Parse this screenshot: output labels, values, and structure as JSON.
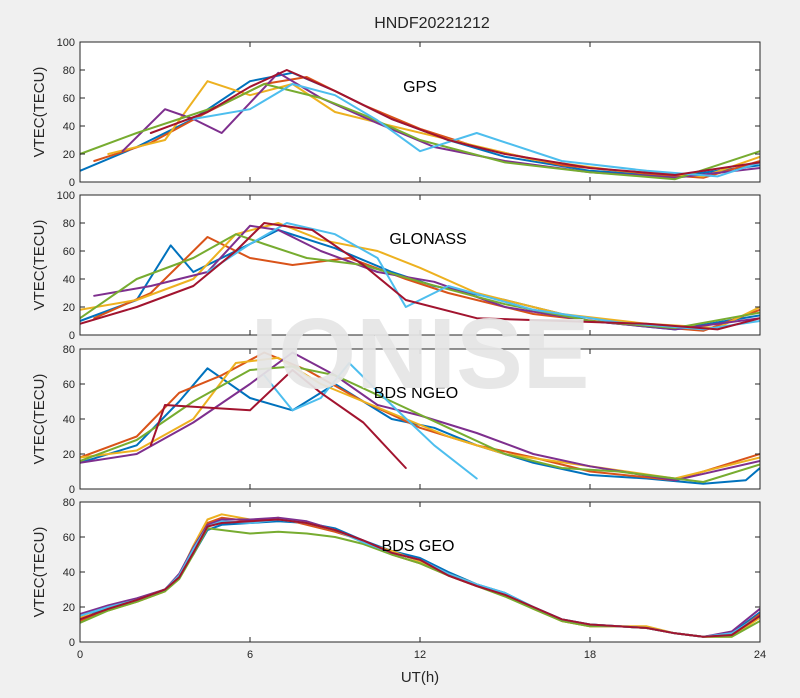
{
  "figure": {
    "title": "HNDF20221212",
    "xlabel": "UT(h)",
    "watermark": "IONISE",
    "series_colors": [
      "#0072bd",
      "#d95319",
      "#edb120",
      "#7e2f8e",
      "#77ac30",
      "#4dbeee",
      "#a2142f"
    ]
  },
  "chart_data": [
    {
      "type": "line",
      "annotation": "GPS",
      "ylabel": "VTEC(TECU)",
      "xlim": [
        0,
        24
      ],
      "ylim": [
        0,
        100
      ],
      "xticks": [
        0,
        6,
        12,
        18,
        24
      ],
      "yticks": [
        0,
        20,
        40,
        60,
        80,
        100
      ],
      "series": [
        {
          "x": [
            0,
            2,
            4,
            6,
            7.5,
            9,
            11,
            13,
            15,
            18,
            21,
            24
          ],
          "values": [
            8,
            25,
            45,
            72,
            78,
            65,
            45,
            30,
            18,
            8,
            4,
            12
          ]
        },
        {
          "x": [
            0.5,
            2.5,
            4.5,
            6.5,
            8,
            10,
            12,
            14,
            17,
            20,
            22,
            24
          ],
          "values": [
            15,
            28,
            50,
            70,
            75,
            55,
            38,
            25,
            12,
            6,
            3,
            15
          ]
        },
        {
          "x": [
            1,
            3,
            4.5,
            6,
            7.5,
            9,
            11,
            13.5,
            16,
            19,
            22,
            24
          ],
          "values": [
            20,
            30,
            72,
            62,
            70,
            50,
            40,
            28,
            16,
            8,
            4,
            18
          ]
        },
        {
          "x": [
            1.5,
            3,
            4,
            5,
            7,
            8.5,
            10.5,
            12.5,
            15,
            18,
            21,
            24
          ],
          "values": [
            22,
            52,
            45,
            35,
            78,
            60,
            42,
            25,
            15,
            7,
            3,
            10
          ]
        },
        {
          "x": [
            0,
            2,
            3.5,
            5,
            6.5,
            8.5,
            10,
            12,
            15,
            18,
            21,
            24
          ],
          "values": [
            20,
            35,
            45,
            55,
            70,
            60,
            48,
            30,
            14,
            7,
            2,
            22
          ]
        },
        {
          "x": [
            4,
            6,
            7.5,
            9,
            10.5,
            12,
            14,
            17,
            20,
            22.5,
            24
          ],
          "values": [
            45,
            52,
            70,
            62,
            44,
            22,
            35,
            15,
            8,
            4,
            14
          ]
        },
        {
          "x": [
            2.5,
            4.5,
            6,
            7.3,
            9,
            11,
            13,
            15,
            18,
            21,
            24
          ],
          "values": [
            35,
            50,
            68,
            80,
            65,
            45,
            30,
            20,
            10,
            5,
            14
          ]
        }
      ]
    },
    {
      "type": "line",
      "annotation": "GLONASS",
      "ylabel": "VTEC(TECU)",
      "xlim": [
        0,
        24
      ],
      "ylim": [
        0,
        100
      ],
      "xticks": [
        0,
        6,
        12,
        18,
        24
      ],
      "yticks": [
        0,
        20,
        40,
        60,
        80,
        100
      ],
      "series": [
        {
          "x": [
            0,
            2,
            3.2,
            4,
            5.5,
            7,
            9,
            11,
            12.5,
            15,
            18,
            21,
            24
          ],
          "values": [
            10,
            25,
            64,
            45,
            60,
            75,
            62,
            45,
            35,
            25,
            10,
            4,
            14
          ]
        },
        {
          "x": [
            0.5,
            2.5,
            4.5,
            6,
            7.5,
            9.5,
            11.5,
            13,
            16,
            19,
            22,
            24
          ],
          "values": [
            12,
            30,
            70,
            55,
            50,
            55,
            40,
            30,
            15,
            8,
            3,
            18
          ]
        },
        {
          "x": [
            0,
            2,
            4,
            5.5,
            7,
            8.5,
            10.5,
            12,
            14,
            17,
            20,
            22.5,
            24
          ],
          "values": [
            18,
            25,
            40,
            72,
            80,
            68,
            60,
            48,
            30,
            15,
            8,
            5,
            20
          ]
        },
        {
          "x": [
            0.5,
            2.5,
            4.5,
            6,
            7,
            8.5,
            10.5,
            12.5,
            15,
            18,
            21,
            24
          ],
          "values": [
            28,
            35,
            45,
            78,
            75,
            60,
            45,
            38,
            20,
            10,
            4,
            12
          ]
        },
        {
          "x": [
            0,
            2,
            4,
            5.5,
            6.5,
            8,
            10,
            12,
            15,
            18,
            21,
            24
          ],
          "values": [
            12,
            40,
            55,
            72,
            65,
            55,
            50,
            38,
            22,
            10,
            5,
            16
          ]
        },
        {
          "x": [
            4.5,
            6,
            7.3,
            9,
            10.5,
            11.5,
            13,
            16,
            19,
            22,
            24
          ],
          "values": [
            45,
            65,
            80,
            72,
            55,
            20,
            35,
            18,
            9,
            4,
            10
          ]
        },
        {
          "x": [
            0,
            2,
            4,
            5.5,
            6.5,
            8.2,
            10,
            11.5,
            14,
            17,
            20,
            22.5,
            24
          ],
          "values": [
            8,
            20,
            35,
            60,
            80,
            75,
            50,
            25,
            12,
            10,
            8,
            4,
            12
          ]
        }
      ]
    },
    {
      "type": "line",
      "annotation": "BDS NGEO",
      "ylabel": "VTEC(TECU)",
      "xlim": [
        0,
        24
      ],
      "ylim": [
        0,
        80
      ],
      "xticks": [
        0,
        6,
        12,
        18,
        24
      ],
      "yticks": [
        0,
        20,
        40,
        60,
        80
      ],
      "series": [
        {
          "x": [
            0,
            2,
            3.5,
            4.5,
            6,
            7.5,
            9,
            11,
            12.5,
            14,
            16,
            18,
            20,
            22,
            23.5,
            24
          ],
          "values": [
            15,
            25,
            50,
            69,
            52,
            45,
            60,
            40,
            35,
            25,
            15,
            8,
            6,
            3,
            5,
            12
          ]
        },
        {
          "x": [
            0,
            2,
            3.5,
            5,
            6.5,
            8,
            10,
            12,
            14,
            16,
            18,
            21,
            24
          ],
          "values": [
            18,
            30,
            55,
            65,
            78,
            68,
            50,
            35,
            25,
            18,
            10,
            5,
            20
          ]
        },
        {
          "x": [
            0,
            2,
            4,
            5.5,
            7,
            8.5,
            10,
            11.5,
            13,
            15,
            18,
            21,
            24
          ],
          "values": [
            18,
            22,
            40,
            72,
            75,
            60,
            50,
            40,
            30,
            20,
            13,
            6,
            18
          ]
        },
        {
          "x": [
            0,
            2,
            4,
            6,
            7.5,
            9,
            10.5,
            12,
            14,
            16,
            18,
            21,
            24
          ],
          "values": [
            15,
            20,
            38,
            60,
            78,
            65,
            48,
            42,
            32,
            20,
            13,
            5,
            16
          ]
        },
        {
          "x": [
            0,
            2,
            4,
            6,
            7.5,
            9,
            11,
            13,
            15,
            17,
            19,
            22,
            24
          ],
          "values": [
            16,
            28,
            50,
            68,
            70,
            65,
            50,
            35,
            20,
            12,
            10,
            4,
            14
          ]
        },
        {
          "x": [
            6.5,
            7.5,
            8.5,
            9.5,
            11,
            12.5,
            14
          ],
          "values": [
            65,
            45,
            52,
            72,
            48,
            25,
            6
          ]
        },
        {
          "x": [
            2.5,
            3,
            6,
            7.5,
            8.5,
            10,
            11.5
          ],
          "values": [
            25,
            48,
            45,
            68,
            55,
            38,
            12
          ]
        }
      ]
    },
    {
      "type": "line",
      "annotation": "BDS GEO",
      "ylabel": "VTEC(TECU)",
      "xlim": [
        0,
        24
      ],
      "ylim": [
        0,
        80
      ],
      "xticks": [
        0,
        6,
        12,
        18,
        24
      ],
      "yticks": [
        0,
        20,
        40,
        60,
        80
      ],
      "series": [
        {
          "x": [
            0,
            1,
            2,
            3,
            3.5,
            4,
            4.5,
            5,
            6,
            7,
            8,
            9,
            10,
            11,
            12,
            13,
            14,
            15,
            16,
            17,
            18,
            19,
            20,
            21,
            22,
            23,
            24
          ],
          "values": [
            13,
            20,
            24,
            30,
            38,
            50,
            64,
            67,
            68,
            69,
            68,
            65,
            58,
            52,
            48,
            40,
            33,
            28,
            20,
            13,
            10,
            9,
            8,
            5,
            3,
            5,
            17
          ]
        },
        {
          "x": [
            0,
            1,
            2,
            3,
            3.5,
            4,
            4.5,
            5,
            6,
            7,
            8,
            9,
            10,
            11,
            12,
            13,
            14,
            15,
            16,
            17,
            18,
            19,
            20,
            21,
            22,
            23,
            24
          ],
          "values": [
            12,
            19,
            23,
            29,
            37,
            52,
            68,
            71,
            69,
            71,
            67,
            63,
            58,
            50,
            45,
            38,
            32,
            27,
            20,
            12,
            9,
            9,
            8,
            5,
            3,
            4,
            16
          ]
        },
        {
          "x": [
            0,
            1,
            2,
            3,
            3.5,
            4,
            4.5,
            5,
            6,
            7,
            8,
            9,
            10,
            11,
            12,
            13,
            14,
            15,
            16,
            17,
            18,
            19,
            20,
            21,
            22,
            23,
            24
          ],
          "values": [
            14,
            18,
            23,
            29,
            38,
            55,
            70,
            73,
            70,
            70,
            68,
            64,
            57,
            52,
            46,
            39,
            33,
            27,
            19,
            12,
            9,
            9,
            9,
            5,
            3,
            3,
            14
          ]
        },
        {
          "x": [
            0,
            1,
            2,
            3,
            3.5,
            4,
            4.5,
            5,
            6,
            7,
            8,
            9,
            10,
            11,
            12,
            13,
            14,
            15,
            16,
            17,
            18,
            19,
            20,
            21,
            22,
            23,
            24
          ],
          "values": [
            16,
            21,
            25,
            30,
            39,
            54,
            67,
            70,
            70,
            71,
            69,
            64,
            58,
            51,
            47,
            39,
            32,
            27,
            20,
            13,
            10,
            9,
            8,
            5,
            3,
            6,
            19
          ]
        },
        {
          "x": [
            0,
            1,
            2,
            3,
            3.5,
            4,
            4.5,
            5,
            6,
            7,
            8,
            9,
            10,
            11,
            12,
            13,
            14,
            15,
            16,
            17,
            18,
            19,
            20,
            21,
            22,
            23,
            24
          ],
          "values": [
            11,
            18,
            23,
            29,
            36,
            50,
            65,
            64,
            62,
            63,
            62,
            60,
            56,
            50,
            45,
            38,
            32,
            26,
            19,
            12,
            9,
            9,
            8,
            5,
            3,
            3,
            12
          ]
        },
        {
          "x": [
            0,
            1,
            2,
            3,
            3.5,
            4,
            4.5,
            5,
            6,
            7,
            8,
            9,
            10,
            11,
            12,
            13,
            14,
            15,
            16,
            17,
            18,
            19,
            20,
            21,
            22,
            23,
            24
          ],
          "values": [
            15,
            20,
            24,
            30,
            38,
            53,
            66,
            69,
            68,
            70,
            68,
            64,
            57,
            51,
            47,
            39,
            33,
            28,
            20,
            13,
            10,
            9,
            8,
            5,
            3,
            5,
            15
          ]
        },
        {
          "x": [
            0,
            1,
            2,
            3,
            3.5,
            4,
            4.5,
            5,
            6,
            7,
            8,
            9,
            10,
            11,
            12,
            13,
            14,
            15,
            16,
            17,
            18,
            19,
            20,
            21,
            22,
            23,
            24
          ],
          "values": [
            13,
            19,
            24,
            30,
            37,
            51,
            66,
            68,
            69,
            70,
            68,
            64,
            58,
            51,
            47,
            38,
            32,
            27,
            20,
            13,
            10,
            9,
            8,
            5,
            3,
            4,
            15
          ]
        }
      ]
    }
  ]
}
